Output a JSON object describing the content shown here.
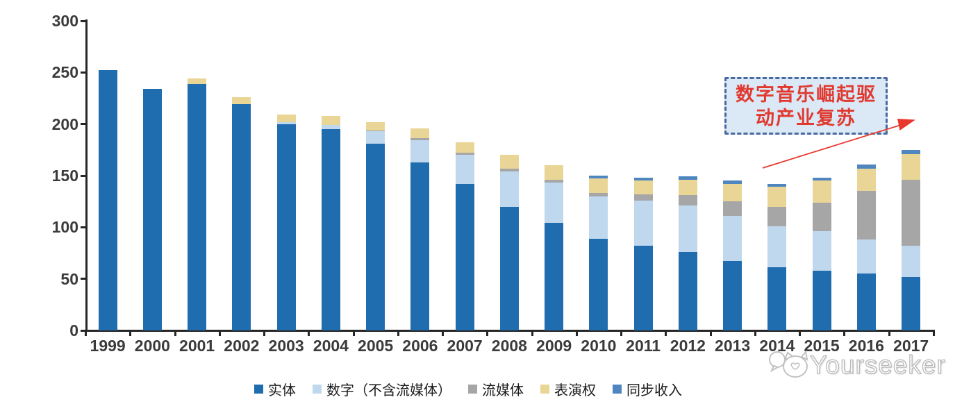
{
  "chart_data": {
    "type": "bar",
    "stacked": true,
    "title": "",
    "xlabel": "",
    "ylabel": "",
    "categories": [
      "1999",
      "2000",
      "2001",
      "2002",
      "2003",
      "2004",
      "2005",
      "2006",
      "2007",
      "2008",
      "2009",
      "2010",
      "2011",
      "2012",
      "2013",
      "2014",
      "2015",
      "2016",
      "2017"
    ],
    "series": [
      {
        "id": "physical",
        "name": "实体",
        "color": "#1f6dae",
        "values": [
          252,
          234,
          239,
          219,
          200,
          195,
          181,
          163,
          142,
          120,
          104,
          89,
          82,
          76,
          67,
          61,
          58,
          55,
          52
        ]
      },
      {
        "id": "digital-excl-streaming",
        "name": "数字（不含流媒体）",
        "color": "#bfd8ee",
        "values": [
          0,
          0,
          0,
          0,
          2,
          4,
          12,
          21,
          28,
          34,
          39,
          41,
          44,
          45,
          44,
          40,
          38,
          33,
          30
        ]
      },
      {
        "id": "streaming",
        "name": "流媒体",
        "color": "#a6a6a6",
        "values": [
          0,
          0,
          0,
          0,
          0,
          0,
          1,
          2,
          2,
          3,
          3,
          3,
          6,
          10,
          14,
          19,
          28,
          47,
          64
        ]
      },
      {
        "id": "performance-rights",
        "name": "表演权",
        "color": "#e9d595",
        "values": [
          0,
          0,
          5,
          7,
          7,
          9,
          8,
          10,
          10,
          13,
          14,
          14,
          13,
          15,
          17,
          19,
          21,
          22,
          25
        ]
      },
      {
        "id": "sync-revenue",
        "name": "同步收入",
        "color": "#4f86c0",
        "values": [
          0,
          0,
          0,
          0,
          0,
          0,
          0,
          0,
          0,
          0,
          0,
          3,
          3,
          3,
          3,
          3,
          3,
          4,
          4
        ]
      }
    ],
    "ylim": [
      0,
      300
    ],
    "yticks": [
      0,
      50,
      100,
      150,
      200,
      250,
      300
    ],
    "grid": false,
    "legend_position": "bottom"
  },
  "annotation": {
    "text_line1": "数字音乐崛起驱",
    "text_line2": "动产业复苏",
    "text_color": "#e03a30",
    "border_color": "#47699f",
    "fill_color": "#dbe8f6",
    "arrow_color": "#e8392e"
  },
  "watermark": {
    "text": "Yourseeker",
    "logo": "cat-face-with-speech-bubble"
  }
}
